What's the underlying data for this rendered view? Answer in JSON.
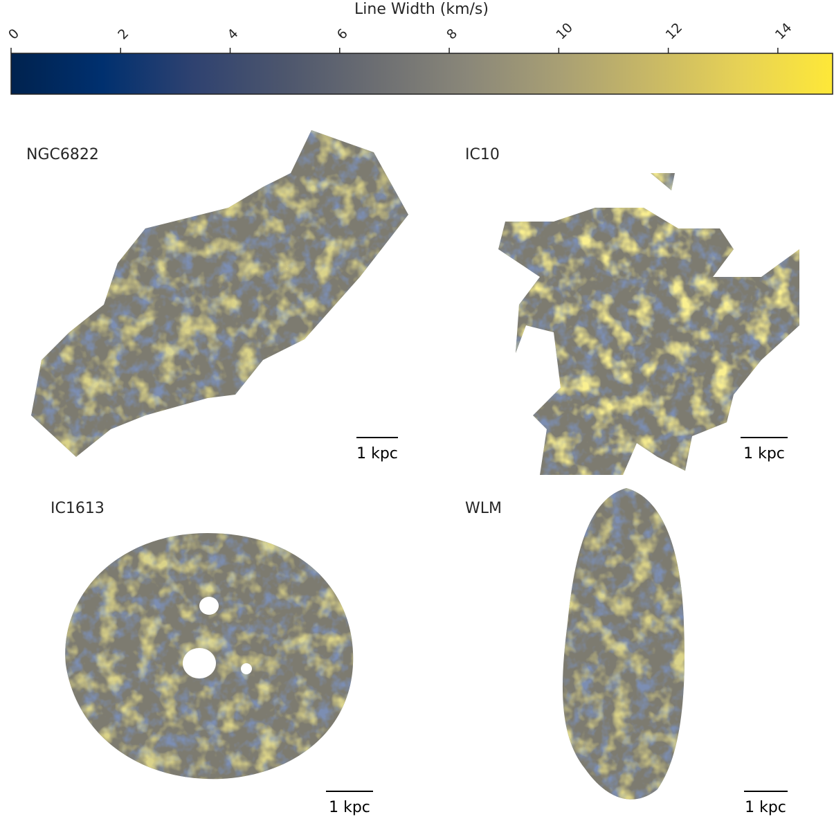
{
  "chart_data": {
    "type": "colorbar",
    "label": "Line Width (km/s)",
    "lim": [
      0,
      15
    ],
    "ticks": [
      0,
      2,
      4,
      6,
      8,
      10,
      12,
      14
    ],
    "colors": [
      "#00224e",
      "#00306f",
      "#2f4270",
      "#4d566d",
      "#6c6e72",
      "#8a8779",
      "#a89f74",
      "#c8b866",
      "#e7d255",
      "#fee838"
    ],
    "panels": [
      {
        "name": "NGC6822",
        "scale_bar": "1 kpc"
      },
      {
        "name": "IC10",
        "scale_bar": "1 kpc"
      },
      {
        "name": "IC1613",
        "scale_bar": "1 kpc"
      },
      {
        "name": "WLM",
        "scale_bar": "1 kpc"
      }
    ]
  }
}
